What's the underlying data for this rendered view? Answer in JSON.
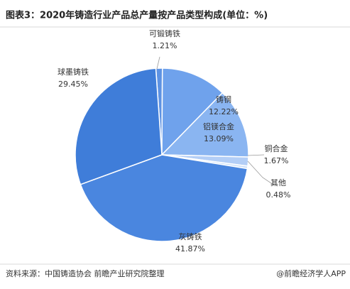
{
  "chart_data": {
    "type": "pie",
    "title": "图表3：2020年铸造行业产品总产量按产品类型构成(单位：%)",
    "categories": [
      "可锻铸铁",
      "铸钢",
      "铝镁合金",
      "铜合金",
      "其他",
      "灰铸铁",
      "球墨铸铁"
    ],
    "values": [
      1.21,
      12.22,
      13.09,
      1.67,
      0.48,
      41.87,
      29.45
    ],
    "value_labels": [
      "1.21%",
      "12.22%",
      "13.09%",
      "1.67%",
      "0.48%",
      "41.87%",
      "29.45%"
    ],
    "colors": [
      "#5d92e3",
      "#6fa2ec",
      "#8ab5f1",
      "#b3cef6",
      "#cde0f9",
      "#4a86df",
      "#3f7dd9"
    ],
    "source": "资料来源：中国铸造协会 前瞻产业研究院整理",
    "watermark": "@前瞻经济学人APP"
  }
}
